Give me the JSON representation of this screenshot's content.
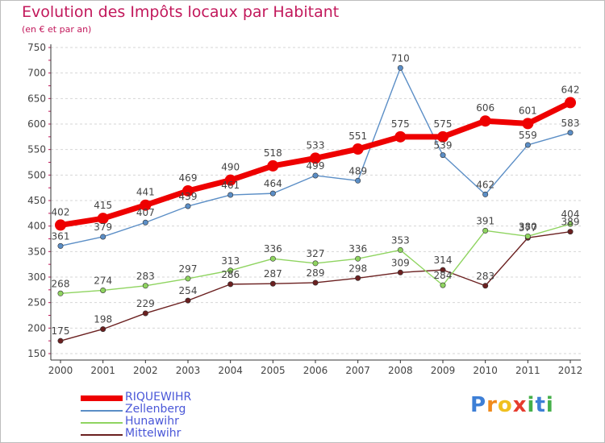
{
  "chart_data": {
    "type": "line",
    "title": "Evolution des Impôts locaux par Habitant",
    "subtitle": "(en € et par an)",
    "categories": [
      "2000",
      "2001",
      "2002",
      "2003",
      "2004",
      "2005",
      "2006",
      "2007",
      "2008",
      "2009",
      "2010",
      "2011",
      "2012"
    ],
    "ylim": [
      150,
      750
    ],
    "yticks": [
      150,
      200,
      250,
      300,
      350,
      400,
      450,
      500,
      550,
      600,
      650,
      700,
      750
    ],
    "grid": "horizontal-dashed",
    "legend_position": "bottom-left",
    "series": [
      {
        "name": "RIQUEWIHR",
        "color": "#ee0000",
        "values": [
          402,
          415,
          441,
          469,
          490,
          518,
          533,
          551,
          575,
          575,
          606,
          601,
          642
        ]
      },
      {
        "name": "Zellenberg",
        "color": "#5b8ec6",
        "values": [
          361,
          379,
          407,
          439,
          461,
          464,
          499,
          489,
          710,
          539,
          462,
          559,
          583
        ]
      },
      {
        "name": "Hunawihr",
        "color": "#8fd460",
        "values": [
          268,
          274,
          283,
          297,
          313,
          336,
          327,
          336,
          353,
          284,
          391,
          380,
          404
        ]
      },
      {
        "name": "Mittelwihr",
        "color": "#6b2020",
        "values": [
          175,
          198,
          229,
          254,
          286,
          287,
          289,
          298,
          309,
          314,
          283,
          377,
          389
        ]
      }
    ]
  },
  "brand": {
    "letters": [
      "P",
      "r",
      "o",
      "x",
      "i",
      "t",
      "i"
    ],
    "colors": [
      "#3d7fd6",
      "#f08a1c",
      "#f0c020",
      "#e63c2e",
      "#45b04a",
      "#3d7fd6",
      "#45b04a"
    ]
  }
}
